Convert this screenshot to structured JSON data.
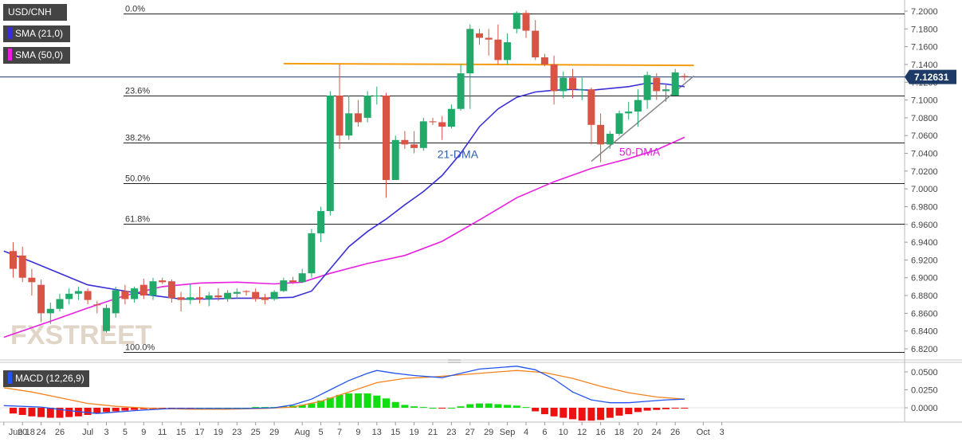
{
  "symbol_label": "USD/CNH",
  "indicator_labels": {
    "sma21": "SMA (21,0)",
    "sma50": "SMA (50,0)",
    "macd": "MACD (12,26,9)"
  },
  "price_tag": "7.12631",
  "watermark": "FXSTREET",
  "colors": {
    "bull": "#22a96a",
    "bear": "#d85445",
    "sma21": "#3a2fd6",
    "sma50": "#e820e0",
    "macd_line": "#2255ee",
    "signal_line": "#f5821f",
    "hist_pos": "#11dd11",
    "hist_neg": "#ee1111",
    "fib_line": "#222222",
    "resistance": "#f39c12",
    "support": "#888888",
    "label_bg": "#444444",
    "text_blue": "#2a5fb0",
    "text_magenta": "#e020d8"
  },
  "chart_data": {
    "type": "candlestick",
    "price_axis": {
      "min": 6.81,
      "max": 7.21,
      "ticks": [
        "7.2000",
        "7.1800",
        "7.1600",
        "7.1400",
        "7.1200",
        "7.1000",
        "7.0800",
        "7.0600",
        "7.0400",
        "7.0200",
        "7.0000",
        "6.9800",
        "6.9600",
        "6.9400",
        "6.9200",
        "6.9000",
        "6.8800",
        "6.8600",
        "6.8400",
        "6.8200"
      ]
    },
    "date_ticks": [
      {
        "label": "Jun 18",
        "i": -1
      },
      {
        "label": "20",
        "i": 1
      },
      {
        "label": "24",
        "i": 3
      },
      {
        "label": "26",
        "i": 5
      },
      {
        "label": "Jul",
        "i": 8
      },
      {
        "label": "3",
        "i": 10
      },
      {
        "label": "5",
        "i": 12
      },
      {
        "label": "9",
        "i": 14
      },
      {
        "label": "11",
        "i": 16
      },
      {
        "label": "15",
        "i": 18
      },
      {
        "label": "17",
        "i": 20
      },
      {
        "label": "19",
        "i": 22
      },
      {
        "label": "23",
        "i": 24
      },
      {
        "label": "25",
        "i": 26
      },
      {
        "label": "29",
        "i": 28
      },
      {
        "label": "Aug",
        "i": 31
      },
      {
        "label": "5",
        "i": 33
      },
      {
        "label": "7",
        "i": 35
      },
      {
        "label": "9",
        "i": 37
      },
      {
        "label": "13",
        "i": 39
      },
      {
        "label": "15",
        "i": 41
      },
      {
        "label": "19",
        "i": 43
      },
      {
        "label": "21",
        "i": 45
      },
      {
        "label": "23",
        "i": 47
      },
      {
        "label": "27",
        "i": 49
      },
      {
        "label": "29",
        "i": 51
      },
      {
        "label": "Sep",
        "i": 53
      },
      {
        "label": "4",
        "i": 55
      },
      {
        "label": "6",
        "i": 57
      },
      {
        "label": "10",
        "i": 59
      },
      {
        "label": "12",
        "i": 61
      },
      {
        "label": "16",
        "i": 63
      },
      {
        "label": "18",
        "i": 65
      },
      {
        "label": "20",
        "i": 67
      },
      {
        "label": "24",
        "i": 69
      },
      {
        "label": "26",
        "i": 71
      },
      {
        "label": "Oct",
        "i": 74
      },
      {
        "label": "3",
        "i": 76
      }
    ],
    "candles": [
      [
        6.93,
        6.94,
        6.9,
        6.91
      ],
      [
        6.925,
        6.935,
        6.895,
        6.9
      ],
      [
        6.9,
        6.91,
        6.88,
        6.895
      ],
      [
        6.892,
        6.898,
        6.85,
        6.86
      ],
      [
        6.86,
        6.872,
        6.848,
        6.865
      ],
      [
        6.865,
        6.882,
        6.862,
        6.876
      ],
      [
        6.876,
        6.888,
        6.87,
        6.882
      ],
      [
        6.882,
        6.89,
        6.875,
        6.885
      ],
      [
        6.885,
        6.888,
        6.87,
        6.875
      ],
      [
        6.87,
        6.874,
        6.86,
        6.869
      ],
      [
        6.84,
        6.87,
        6.838,
        6.866
      ],
      [
        6.86,
        6.89,
        6.855,
        6.886
      ],
      [
        6.885,
        6.892,
        6.87,
        6.876
      ],
      [
        6.876,
        6.89,
        6.872,
        6.888
      ],
      [
        6.892,
        6.899,
        6.876,
        6.88
      ],
      [
        6.88,
        6.9,
        6.875,
        6.896
      ],
      [
        6.897,
        6.9,
        6.893,
        6.895
      ],
      [
        6.896,
        6.898,
        6.872,
        6.877
      ],
      [
        6.878,
        6.884,
        6.862,
        6.875
      ],
      [
        6.875,
        6.893,
        6.87,
        6.878
      ],
      [
        6.878,
        6.89,
        6.871,
        6.876
      ],
      [
        6.876,
        6.884,
        6.868,
        6.88
      ],
      [
        6.88,
        6.888,
        6.874,
        6.878
      ],
      [
        6.876,
        6.886,
        6.873,
        6.883
      ],
      [
        6.882,
        6.888,
        6.876,
        6.884
      ],
      [
        6.885,
        6.886,
        6.88,
        6.884
      ],
      [
        6.884,
        6.888,
        6.873,
        6.876
      ],
      [
        6.878,
        6.882,
        6.87,
        6.875
      ],
      [
        6.876,
        6.886,
        6.874,
        6.884
      ],
      [
        6.885,
        6.9,
        6.884,
        6.897
      ],
      [
        6.897,
        6.901,
        6.893,
        6.895
      ],
      [
        6.895,
        6.91,
        6.894,
        6.905
      ],
      [
        6.905,
        6.955,
        6.9,
        6.95
      ],
      [
        6.95,
        6.98,
        6.94,
        6.975
      ],
      [
        6.975,
        7.11,
        6.97,
        7.105
      ],
      [
        7.105,
        7.14,
        7.045,
        7.06
      ],
      [
        7.06,
        7.105,
        7.055,
        7.085
      ],
      [
        7.085,
        7.1,
        7.07,
        7.075
      ],
      [
        7.08,
        7.11,
        7.075,
        7.105
      ],
      [
        7.105,
        7.115,
        7.095,
        7.105
      ],
      [
        7.105,
        7.108,
        6.99,
        7.01
      ],
      [
        7.01,
        7.06,
        7.01,
        7.055
      ],
      [
        7.055,
        7.065,
        7.045,
        7.05
      ],
      [
        7.05,
        7.065,
        7.04,
        7.046
      ],
      [
        7.046,
        7.08,
        7.043,
        7.076
      ],
      [
        7.076,
        7.08,
        7.072,
        7.075
      ],
      [
        7.075,
        7.082,
        7.055,
        7.07
      ],
      [
        7.07,
        7.095,
        7.068,
        7.09
      ],
      [
        7.09,
        7.14,
        7.088,
        7.13
      ],
      [
        7.13,
        7.185,
        7.09,
        7.18
      ],
      [
        7.175,
        7.18,
        7.162,
        7.17
      ],
      [
        7.17,
        7.18,
        7.15,
        7.168
      ],
      [
        7.168,
        7.185,
        7.14,
        7.145
      ],
      [
        7.145,
        7.175,
        7.14,
        7.165
      ],
      [
        7.18,
        7.2,
        7.175,
        7.198
      ],
      [
        7.198,
        7.201,
        7.17,
        7.178
      ],
      [
        7.178,
        7.19,
        7.145,
        7.148
      ],
      [
        7.148,
        7.152,
        7.138,
        7.14
      ],
      [
        7.14,
        7.15,
        7.095,
        7.11
      ],
      [
        7.11,
        7.132,
        7.102,
        7.125
      ],
      [
        7.125,
        7.135,
        7.102,
        7.112
      ],
      [
        7.112,
        7.125,
        7.1,
        7.112
      ],
      [
        7.112,
        7.114,
        7.05,
        7.072
      ],
      [
        7.072,
        7.085,
        7.03,
        7.05
      ],
      [
        7.05,
        7.065,
        7.045,
        7.062
      ],
      [
        7.062,
        7.088,
        7.06,
        7.085
      ],
      [
        7.085,
        7.098,
        7.078,
        7.087
      ],
      [
        7.087,
        7.112,
        7.07,
        7.1
      ],
      [
        7.1,
        7.132,
        7.09,
        7.128
      ],
      [
        7.125,
        7.13,
        7.1,
        7.11
      ],
      [
        7.11,
        7.118,
        7.098,
        7.112
      ],
      [
        7.105,
        7.135,
        7.105,
        7.131
      ],
      [
        7.127,
        7.13,
        7.122,
        7.126
      ]
    ],
    "sma21": [
      [
        -1,
        6.93
      ],
      [
        2,
        6.918
      ],
      [
        5,
        6.905
      ],
      [
        8,
        6.892
      ],
      [
        12,
        6.885
      ],
      [
        15,
        6.88
      ],
      [
        18,
        6.876
      ],
      [
        21,
        6.876
      ],
      [
        24,
        6.877
      ],
      [
        27,
        6.877
      ],
      [
        30,
        6.878
      ],
      [
        32,
        6.885
      ],
      [
        34,
        6.91
      ],
      [
        36,
        6.935
      ],
      [
        38,
        6.952
      ],
      [
        40,
        6.966
      ],
      [
        42,
        6.982
      ],
      [
        44,
        6.997
      ],
      [
        46,
        7.015
      ],
      [
        48,
        7.04
      ],
      [
        50,
        7.07
      ],
      [
        52,
        7.09
      ],
      [
        54,
        7.103
      ],
      [
        56,
        7.109
      ],
      [
        58,
        7.111
      ],
      [
        60,
        7.112
      ],
      [
        62,
        7.111
      ],
      [
        64,
        7.113
      ],
      [
        66,
        7.115
      ],
      [
        68,
        7.119
      ],
      [
        70,
        7.118
      ],
      [
        72,
        7.115
      ]
    ],
    "sma50": [
      [
        -1,
        6.833
      ],
      [
        4,
        6.851
      ],
      [
        8,
        6.866
      ],
      [
        12,
        6.88
      ],
      [
        16,
        6.89
      ],
      [
        20,
        6.894
      ],
      [
        24,
        6.895
      ],
      [
        28,
        6.893
      ],
      [
        31,
        6.895
      ],
      [
        34,
        6.905
      ],
      [
        38,
        6.916
      ],
      [
        42,
        6.925
      ],
      [
        46,
        6.941
      ],
      [
        50,
        6.965
      ],
      [
        54,
        6.99
      ],
      [
        58,
        7.008
      ],
      [
        62,
        7.023
      ],
      [
        66,
        7.034
      ],
      [
        69,
        7.044
      ],
      [
        72,
        7.058
      ]
    ],
    "fib_levels": [
      {
        "label": "0.0%",
        "price": 7.197
      },
      {
        "label": "23.6%",
        "price": 7.105
      },
      {
        "label": "38.2%",
        "price": 7.052
      },
      {
        "label": "50.0%",
        "price": 7.006
      },
      {
        "label": "61.8%",
        "price": 6.961
      },
      {
        "label": "100.0%",
        "price": 6.816
      }
    ],
    "resistance": {
      "from": [
        29,
        7.141
      ],
      "to": [
        73,
        7.139
      ]
    },
    "support": {
      "from": [
        62,
        7.031
      ],
      "to": [
        73,
        7.127
      ]
    },
    "annotations": [
      {
        "text": "21-DMA",
        "i": 46,
        "price": 7.039
      },
      {
        "text": "50-DMA",
        "i": 65.5,
        "price": 7.042
      }
    ],
    "macd": {
      "title": "MACD (12,26,9)",
      "axis": {
        "min": -0.018,
        "max": 0.058,
        "ticks": [
          "0.0500",
          "0.0250",
          "0.0000"
        ]
      },
      "macd_line": [
        [
          -1,
          0.003
        ],
        [
          3,
          0.001
        ],
        [
          6,
          -0.004
        ],
        [
          9,
          -0.008
        ],
        [
          13,
          -0.004
        ],
        [
          17,
          -0.001
        ],
        [
          21,
          -0.001
        ],
        [
          25,
          -0.001
        ],
        [
          28,
          0.0
        ],
        [
          30,
          0.004
        ],
        [
          32,
          0.012
        ],
        [
          34,
          0.025
        ],
        [
          36,
          0.038
        ],
        [
          38,
          0.048
        ],
        [
          39,
          0.052
        ],
        [
          41,
          0.048
        ],
        [
          43,
          0.045
        ],
        [
          46,
          0.042
        ],
        [
          48,
          0.048
        ],
        [
          50,
          0.054
        ],
        [
          52,
          0.056
        ],
        [
          54,
          0.058
        ],
        [
          56,
          0.053
        ],
        [
          58,
          0.04
        ],
        [
          60,
          0.022
        ],
        [
          62,
          0.011
        ],
        [
          64,
          0.007
        ],
        [
          66,
          0.007
        ],
        [
          68,
          0.009
        ],
        [
          70,
          0.011
        ],
        [
          72,
          0.012
        ]
      ],
      "signal_line": [
        [
          -1,
          0.028
        ],
        [
          2,
          0.022
        ],
        [
          5,
          0.014
        ],
        [
          8,
          0.006
        ],
        [
          11,
          0.002
        ],
        [
          15,
          -0.001
        ],
        [
          19,
          -0.002
        ],
        [
          23,
          -0.002
        ],
        [
          27,
          -0.001
        ],
        [
          30,
          0.001
        ],
        [
          33,
          0.009
        ],
        [
          36,
          0.022
        ],
        [
          39,
          0.035
        ],
        [
          42,
          0.041
        ],
        [
          45,
          0.043
        ],
        [
          48,
          0.046
        ],
        [
          51,
          0.049
        ],
        [
          54,
          0.052
        ],
        [
          57,
          0.049
        ],
        [
          60,
          0.041
        ],
        [
          63,
          0.03
        ],
        [
          66,
          0.021
        ],
        [
          69,
          0.015
        ],
        [
          72,
          0.012
        ]
      ],
      "histogram": [
        -0.008,
        -0.01,
        -0.012,
        -0.013,
        -0.014,
        -0.014,
        -0.013,
        -0.012,
        -0.01,
        -0.008,
        -0.006,
        -0.005,
        -0.004,
        -0.003,
        -0.002,
        -0.002,
        -0.001,
        -0.001,
        -0.001,
        -0.001,
        0.0,
        0.0,
        0.0,
        0.0,
        0.0,
        0.0,
        0.001,
        0.001,
        0.001,
        0.002,
        0.003,
        0.004,
        0.006,
        0.01,
        0.014,
        0.018,
        0.02,
        0.02,
        0.02,
        0.017,
        0.013,
        0.008,
        0.004,
        0.002,
        0.001,
        0.0,
        -0.001,
        0.0,
        0.002,
        0.005,
        0.006,
        0.006,
        0.005,
        0.004,
        0.003,
        0.001,
        -0.005,
        -0.009,
        -0.012,
        -0.014,
        -0.016,
        -0.018,
        -0.018,
        -0.017,
        -0.014,
        -0.011,
        -0.009,
        -0.006,
        -0.004,
        -0.003,
        -0.002,
        -0.001,
        -0.001
      ]
    }
  }
}
